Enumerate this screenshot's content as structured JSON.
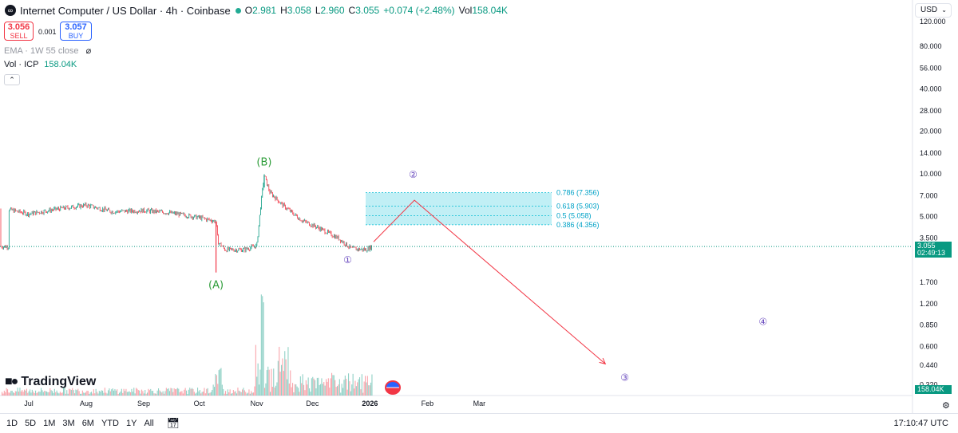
{
  "header": {
    "symbol_title": "Internet Computer / US Dollar · 4h · Coinbase",
    "o_label": "O",
    "o_value": "2.981",
    "h_label": "H",
    "h_value": "3.058",
    "l_label": "L",
    "l_value": "2.960",
    "c_label": "C",
    "c_value": "3.055",
    "change": "+0.074 (+2.48%)",
    "vol_label": "Vol",
    "vol_value": "158.04K"
  },
  "trade": {
    "sell_price": "3.056",
    "sell_label": "SELL",
    "spread": "0.001",
    "buy_price": "3.057",
    "buy_label": "BUY"
  },
  "indicators": {
    "ema_label": "EMA · 1W 55 close",
    "vol_label": "Vol · ICP",
    "vol_value": "158.04K",
    "collapse_glyph": "⌃"
  },
  "currency_selector": "USD",
  "price_axis_labels": [
    "120.000",
    "80.000",
    "56.000",
    "40.000",
    "28.000",
    "20.000",
    "14.000",
    "10.000",
    "7.000",
    "5.000",
    "3.500",
    "1.700",
    "1.200",
    "0.850",
    "0.600",
    "0.440",
    "0.320"
  ],
  "last_price_label": {
    "price": "3.055",
    "countdown": "02:49:13"
  },
  "volume_label": "158.04K",
  "time_axis_labels": [
    "Jul",
    "Aug",
    "Sep",
    "Oct",
    "Nov",
    "Dec",
    "2026",
    "Feb",
    "Mar"
  ],
  "timeframes": [
    "1D",
    "5D",
    "1M",
    "3M",
    "6M",
    "YTD",
    "1Y",
    "All"
  ],
  "clock": "17:10:47 UTC",
  "branding": "TradingView",
  "colors": {
    "up": "#089981",
    "down": "#f23645",
    "accent": "#2962ff",
    "wave_label": "#6a4bbf",
    "corrective_label": "#2e9d3a",
    "fib_fill": "#b2ebf2",
    "fib_line": "#00bcd4",
    "projection": "#f23645"
  },
  "chart_data": {
    "type": "candlestick",
    "title": "Internet Computer / US Dollar · 4h · Coinbase",
    "y_scale": "log",
    "ylim": [
      0.3,
      130
    ],
    "x": [
      "2025-06-20",
      "2025-07-01",
      "2025-07-15",
      "2025-08-01",
      "2025-08-15",
      "2025-09-01",
      "2025-09-15",
      "2025-10-01",
      "2025-10-10",
      "2025-10-11",
      "2025-10-15",
      "2025-10-25",
      "2025-11-01",
      "2025-11-03",
      "2025-11-05",
      "2025-11-08",
      "2025-11-15",
      "2025-11-25",
      "2025-12-05",
      "2025-12-15",
      "2025-12-22",
      "2025-12-30",
      "2026-01-02"
    ],
    "close": [
      5.6,
      5.2,
      5.6,
      6.0,
      5.4,
      5.5,
      5.3,
      4.9,
      4.6,
      3.3,
      2.9,
      2.9,
      3.1,
      5.8,
      9.8,
      7.4,
      6.0,
      4.7,
      4.1,
      3.5,
      2.95,
      2.9,
      3.055
    ],
    "spike_low": 2.0,
    "spike_high": 9.8,
    "last_price": 3.055,
    "wave_labels": [
      {
        "label": "(A)",
        "x": "2025-10-10",
        "price": 2.0
      },
      {
        "label": "(B)",
        "x": "2025-11-05",
        "price": 9.8
      },
      {
        "label": "①",
        "x": "2025-12-20",
        "price": 2.9
      },
      {
        "label": "②",
        "x": "2026-01-20",
        "price": 6.5
      },
      {
        "label": "③",
        "x": "2026-05-15",
        "price": 0.4
      },
      {
        "label": "④",
        "x": "2026-08-01",
        "price": 0.85
      }
    ],
    "fibonacci": [
      {
        "ratio": 0.786,
        "price": 7.356,
        "label": "0.786 (7.356)"
      },
      {
        "ratio": 0.618,
        "price": 5.903,
        "label": "0.618 (5.903)"
      },
      {
        "ratio": 0.5,
        "price": 5.058,
        "label": "0.5 (5.058)"
      },
      {
        "ratio": 0.386,
        "price": 4.356,
        "label": "0.386 (4.356)"
      }
    ],
    "projection_path": [
      {
        "x": "2026-01-03",
        "price": 3.3
      },
      {
        "x": "2026-01-25",
        "price": 6.5
      },
      {
        "x": "2026-05-08",
        "price": 0.45
      }
    ],
    "volume": {
      "last": "158.04K"
    }
  }
}
